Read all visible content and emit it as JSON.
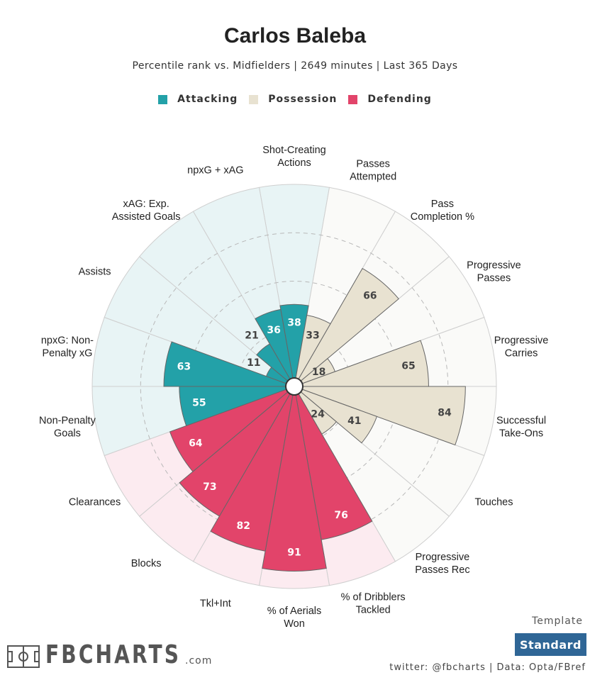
{
  "title": "Carlos Baleba",
  "subtitle": "Percentile rank vs. Midfielders | 2649 minutes | Last 365 Days",
  "legend": [
    {
      "label": "Attacking",
      "color": "#23a1a8"
    },
    {
      "label": "Possession",
      "color": "#e8e2d1"
    },
    {
      "label": "Defending",
      "color": "#e2446a"
    }
  ],
  "template": {
    "label": "Template",
    "value": "Standard"
  },
  "credits": "twitter: @fbcharts | Data: Opta/FBref",
  "logo": {
    "text": "FBCHARTS",
    "suffix": ".com"
  },
  "chart_data": {
    "type": "polar-bar",
    "scale": [
      0,
      100
    ],
    "grid": "dashed rings at 25/50/75",
    "series": [
      {
        "name": "Attacking",
        "color": "#23a1a8",
        "bg": "#e8f4f5"
      },
      {
        "name": "Possession",
        "color": "#e8e2d1",
        "bg": "#fafaf8"
      },
      {
        "name": "Defending",
        "color": "#e2446a",
        "bg": "#fcebf0"
      }
    ],
    "metrics": [
      {
        "label": "Shot-Creating\nActions",
        "value": 38,
        "group": "Attacking"
      },
      {
        "label": "Passes\nAttempted",
        "value": 33,
        "group": "Possession"
      },
      {
        "label": "Pass\nCompletion %",
        "value": 66,
        "group": "Possession"
      },
      {
        "label": "Progressive\nPasses",
        "value": 18,
        "group": "Possession"
      },
      {
        "label": "Progressive\nCarries",
        "value": 65,
        "group": "Possession"
      },
      {
        "label": "Successful\nTake-Ons",
        "value": 84,
        "group": "Possession"
      },
      {
        "label": "Touches",
        "value": 41,
        "group": "Possession"
      },
      {
        "label": "Progressive\nPasses Rec",
        "value": 24,
        "group": "Possession"
      },
      {
        "label": "% of Dribblers\nTackled",
        "value": 76,
        "group": "Defending"
      },
      {
        "label": "% of Aerials\nWon",
        "value": 91,
        "group": "Defending"
      },
      {
        "label": "Tkl+Int",
        "value": 82,
        "group": "Defending"
      },
      {
        "label": "Blocks",
        "value": 73,
        "group": "Defending"
      },
      {
        "label": "Clearances",
        "value": 64,
        "group": "Defending"
      },
      {
        "label": "Non-Penalty\nGoals",
        "value": 55,
        "group": "Attacking"
      },
      {
        "label": "npxG: Non-\nPenalty xG",
        "value": 63,
        "group": "Attacking"
      },
      {
        "label": "Assists",
        "value": 11,
        "group": "Attacking"
      },
      {
        "label": "xAG: Exp.\nAssisted Goals",
        "value": 21,
        "group": "Attacking"
      },
      {
        "label": "npxG + xAG",
        "value": 36,
        "group": "Attacking"
      }
    ]
  }
}
